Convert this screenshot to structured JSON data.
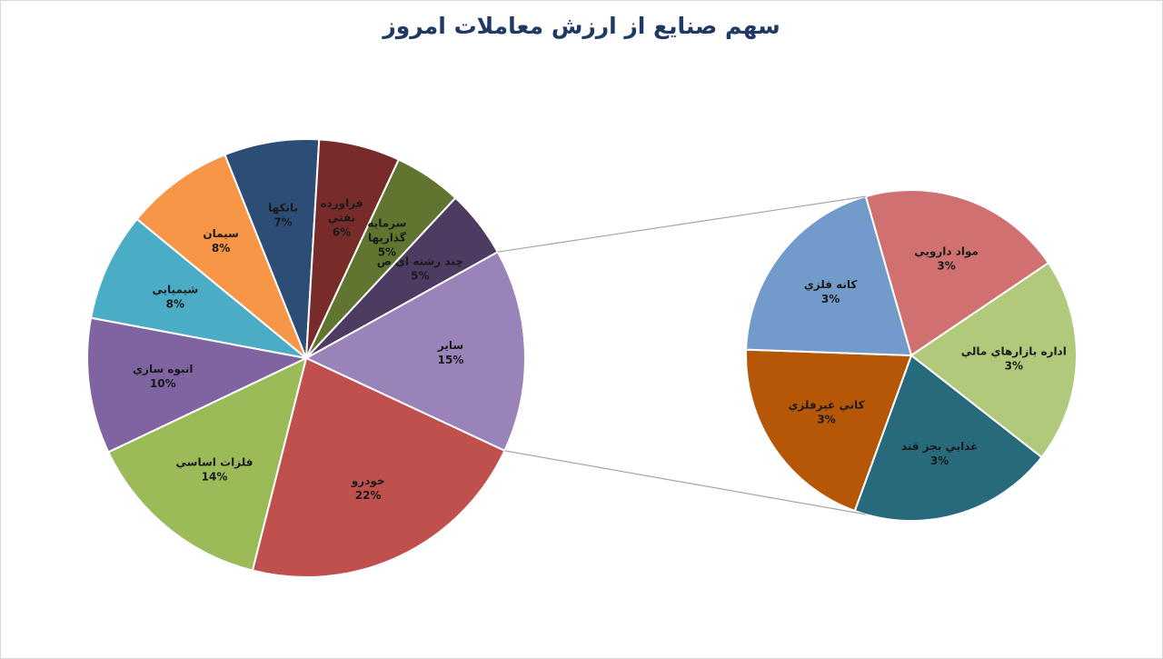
{
  "chart_data": {
    "type": "pie",
    "title": "سهم صنايع از ارزش معاملات امروز",
    "main_pie": {
      "slices": [
        {
          "label": "سایر",
          "pct": "15%",
          "value": 15,
          "color": "#9a83b8"
        },
        {
          "label": "خودرو",
          "pct": "22%",
          "value": 22,
          "color": "#c0504d"
        },
        {
          "label": "فلزات اساسي",
          "pct": "14%",
          "value": 14,
          "color": "#9bbb59"
        },
        {
          "label": "انبوه سازي",
          "pct": "10%",
          "value": 10,
          "color": "#8064a2"
        },
        {
          "label": "شيميايي",
          "pct": "8%",
          "value": 8,
          "color": "#4bacc6"
        },
        {
          "label": "سيمان",
          "pct": "8%",
          "value": 8,
          "color": "#f79646"
        },
        {
          "label": "بانكها",
          "pct": "7%",
          "value": 7,
          "color": "#2c4d75"
        },
        {
          "label": "فراورده نفتي",
          "label_lines": [
            "فراورده",
            "نفتي"
          ],
          "pct": "6%",
          "value": 6,
          "color": "#772c2a"
        },
        {
          "label": "سرمايه گذاريها",
          "label_lines": [
            "سرمايه",
            "گذاريها"
          ],
          "pct": "5%",
          "value": 5,
          "color": "#5f7530"
        },
        {
          "label": "چند رشته اي ص",
          "pct": "5%",
          "value": 5,
          "color": "#4d3b62"
        }
      ]
    },
    "secondary_pie": {
      "exploded_from": "سایر",
      "slices": [
        {
          "label": "مواد دارويي",
          "pct": "3%",
          "value": 3,
          "color": "#d07070"
        },
        {
          "label": "اداره بازارهاي مالي",
          "pct": "3%",
          "value": 3,
          "color": "#b0c97a"
        },
        {
          "label": "غذايي بجز قند",
          "pct": "3%",
          "value": 3,
          "color": "#276a7c"
        },
        {
          "label": "كاني غيرفلزي",
          "pct": "3%",
          "value": 3,
          "color": "#b65708"
        },
        {
          "label": "كانه فلزي",
          "pct": "3%",
          "value": 3,
          "color": "#729aca"
        }
      ]
    },
    "legend": "none"
  }
}
